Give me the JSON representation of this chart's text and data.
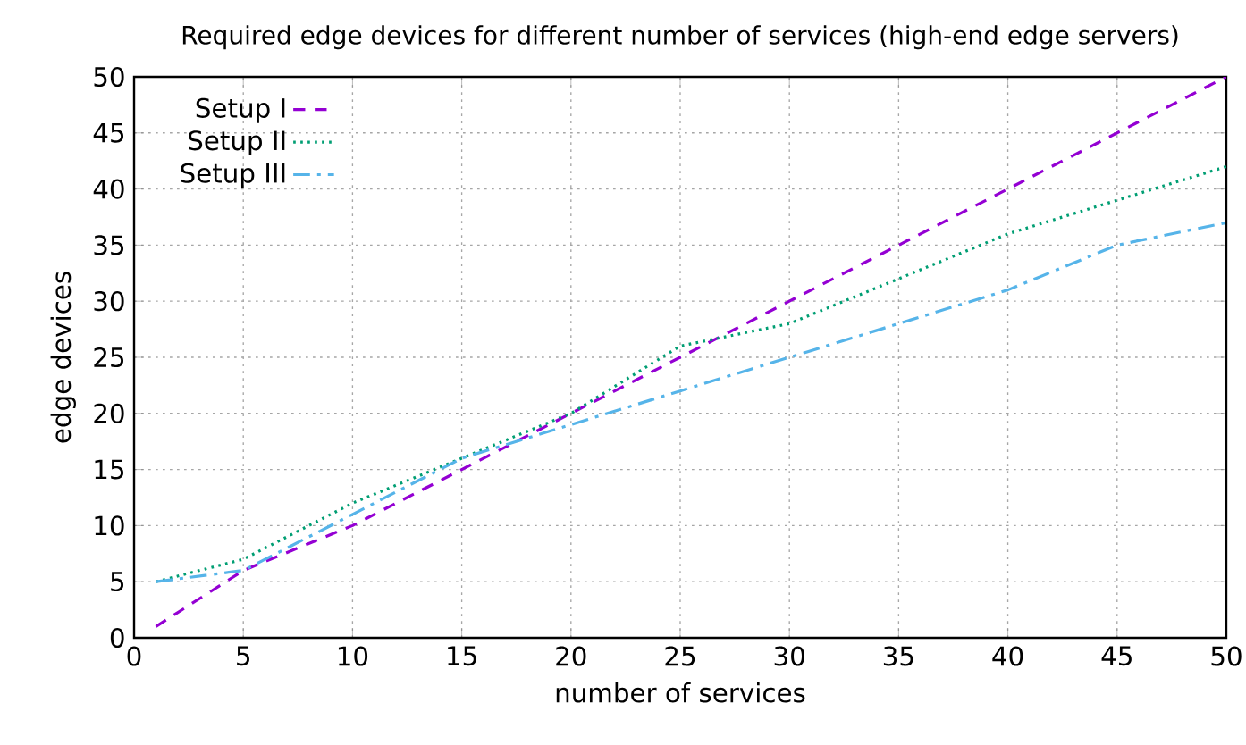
{
  "chart_data": {
    "type": "line",
    "title": "Required edge devices for different number of services (high-end edge servers)",
    "xlabel": "number of services",
    "ylabel": "edge devices",
    "x": [
      1,
      5,
      10,
      15,
      20,
      25,
      30,
      35,
      40,
      45,
      50
    ],
    "series": [
      {
        "name": "Setup I",
        "color": "#9400d3",
        "line_style": "dashed",
        "values": [
          1,
          6,
          10,
          15,
          20,
          25,
          30,
          35,
          40,
          45,
          50
        ]
      },
      {
        "name": "Setup II",
        "color": "#009e73",
        "line_style": "dotted",
        "values": [
          5,
          7,
          12,
          16,
          20,
          26,
          28,
          32,
          36,
          39,
          42
        ]
      },
      {
        "name": "Setup III",
        "color": "#56b4e9",
        "line_style": "dashdot",
        "values": [
          5,
          6,
          11,
          16,
          19,
          22,
          25,
          28,
          31,
          35,
          37
        ]
      }
    ],
    "xlim": [
      0,
      50
    ],
    "ylim": [
      0,
      50
    ],
    "xticks": [
      0,
      5,
      10,
      15,
      20,
      25,
      30,
      35,
      40,
      45,
      50
    ],
    "yticks": [
      0,
      5,
      10,
      15,
      20,
      25,
      30,
      35,
      40,
      45,
      50
    ],
    "grid": true,
    "legend": "top left",
    "marker": "none"
  }
}
